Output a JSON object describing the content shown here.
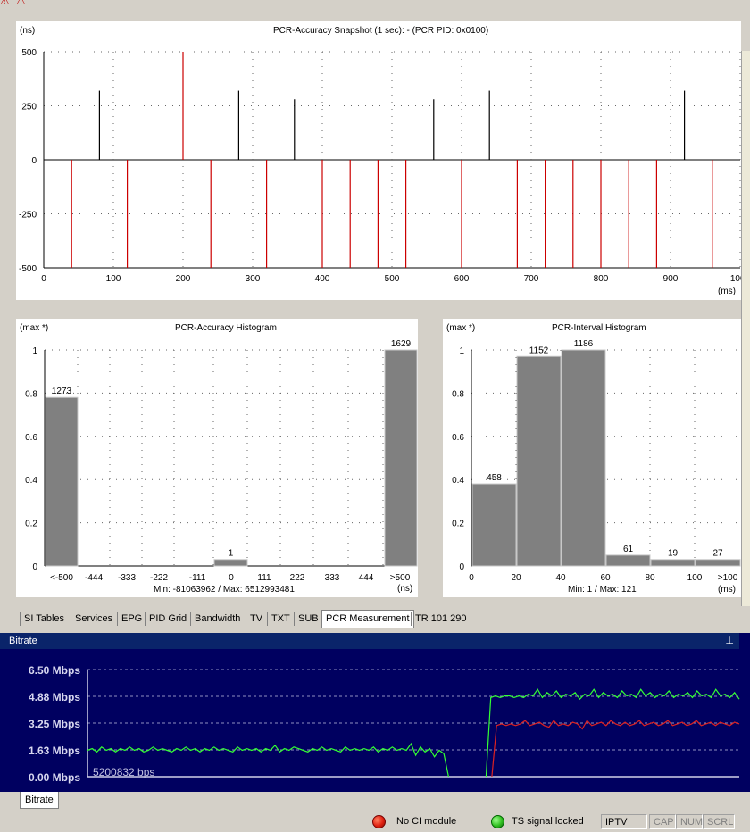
{
  "snapshot": {
    "title": "PCR-Accuracy Snapshot (1 sec):  - (PCR PID: 0x0100)",
    "ylabel": "(ns)",
    "xunit": "(ms)",
    "yticks": [
      "500",
      "250",
      "0",
      "-250",
      "-500"
    ],
    "xticks": [
      "0",
      "100",
      "200",
      "300",
      "400",
      "500",
      "600",
      "700",
      "800",
      "900",
      "1000"
    ]
  },
  "acc_hist": {
    "title": "PCR-Accuracy Histogram",
    "ylabel": "(max *)",
    "xunit": "(ns)",
    "minmax": "Min: -81063962 / Max: 6512993481",
    "yticks": [
      "1",
      "0.8",
      "0.6",
      "0.4",
      "0.2",
      "0"
    ],
    "xticks": [
      "<-500",
      "-444",
      "-333",
      "-222",
      "-111",
      "0",
      "111",
      "222",
      "333",
      "444",
      ">500"
    ],
    "bar_labels": [
      "1273",
      "1",
      "1629"
    ]
  },
  "int_hist": {
    "title": "PCR-Interval Histogram",
    "ylabel": "(max *)",
    "xunit": "(ms)",
    "minmax": "Min: 1 / Max: 121",
    "yticks": [
      "1",
      "0.8",
      "0.6",
      "0.4",
      "0.2",
      "0"
    ],
    "xticks": [
      "0",
      "20",
      "40",
      "60",
      "80",
      "100",
      ">100"
    ],
    "bar_labels": [
      "458",
      "1152",
      "1186",
      "61",
      "19",
      "27"
    ]
  },
  "chart_data": [
    {
      "type": "bar",
      "title": "PCR-Accuracy Snapshot (1 sec):  - (PCR PID: 0x0100)",
      "ylabel": "(ns)",
      "xlabel": "(ms)",
      "xlim": [
        0,
        1000
      ],
      "ylim": [
        -500,
        500
      ],
      "series": [
        {
          "name": "",
          "color": "#000000",
          "x": [
            80,
            280,
            360,
            560,
            640,
            920
          ],
          "values": [
            320,
            320,
            280,
            280,
            320,
            320
          ]
        },
        {
          "name": "",
          "color": "#cc0000",
          "x": [
            40,
            120,
            200,
            240,
            320,
            400,
            440,
            480,
            520,
            600,
            680,
            720,
            760,
            800,
            840,
            880,
            960
          ],
          "values": [
            -500,
            -500,
            500,
            -500,
            -500,
            -500,
            -500,
            -500,
            -500,
            -500,
            -500,
            -500,
            -500,
            -500,
            -500,
            -500,
            -500
          ]
        }
      ]
    },
    {
      "type": "bar",
      "title": "PCR-Accuracy Histogram",
      "ylabel": "(max *)",
      "xlabel": "(ns)",
      "categories": [
        "<-500",
        "-444",
        "-333",
        "-222",
        "-111",
        "0",
        "111",
        "222",
        "333",
        "444",
        ">500"
      ],
      "values": [
        0.78,
        0,
        0,
        0,
        0,
        0.03,
        0,
        0,
        0,
        0,
        1.0
      ],
      "ylim": [
        0,
        1
      ]
    },
    {
      "type": "bar",
      "title": "PCR-Interval Histogram",
      "ylabel": "(max *)",
      "xlabel": "(ms)",
      "categories": [
        "0-20",
        "20-40",
        "40-60",
        "60-80",
        "80-100",
        ">100"
      ],
      "values": [
        0.38,
        0.97,
        1.0,
        0.05,
        0.03,
        0.03
      ],
      "ylim": [
        0,
        1
      ]
    },
    {
      "type": "line",
      "title": "Bitrate",
      "yticks": [
        "6.50 Mbps",
        "4.88 Mbps",
        "3.25 Mbps",
        "1.63 Mbps",
        "0.00 Mbps"
      ],
      "ylim": [
        0,
        6.5
      ],
      "series": [
        {
          "name": "",
          "color": "#33ff33",
          "values": [
            1.6,
            1.7,
            1.5,
            1.8,
            1.6,
            1.7,
            1.5,
            1.7,
            1.6,
            1.8,
            1.6,
            1.7,
            1.5,
            1.6,
            1.8,
            1.6,
            1.7,
            1.6,
            1.5,
            1.7,
            1.6,
            1.8,
            1.6,
            1.7,
            1.5,
            1.7,
            1.6,
            1.8,
            1.6,
            1.7,
            1.6,
            1.5,
            1.8,
            1.6,
            1.7,
            1.6,
            1.7,
            1.5,
            1.7,
            1.6,
            1.9,
            1.5,
            1.7,
            1.6,
            1.8,
            1.7,
            1.6,
            1.5,
            1.7,
            1.6,
            1.8,
            1.6,
            1.7,
            1.6,
            1.5,
            1.8,
            1.6,
            1.7,
            1.6,
            1.7,
            1.6,
            1.8,
            1.5,
            1.7,
            1.6,
            1.8,
            1.6,
            1.7,
            1.6,
            2.0,
            1.3,
            1.8,
            1.5,
            1.7,
            1.2,
            1.6,
            1.4,
            0.0,
            null,
            null,
            null,
            null,
            null,
            null,
            null,
            0.0,
            4.8,
            4.9,
            4.8,
            4.9,
            4.9,
            4.8,
            4.9,
            4.8,
            5.0,
            4.9,
            5.3,
            4.8,
            5.1,
            4.9,
            5.2,
            4.8,
            5.0,
            4.9,
            5.1,
            4.7,
            5.0,
            4.9,
            5.3,
            4.8,
            5.1,
            4.9,
            5.0,
            4.8,
            5.2,
            4.9,
            5.0,
            4.8,
            5.3,
            4.9,
            5.1,
            4.8,
            5.0,
            4.9,
            5.2,
            4.8,
            5.0,
            4.9,
            5.1,
            4.8,
            5.2,
            4.9,
            5.0,
            4.8,
            5.3,
            4.9,
            5.0,
            4.8,
            5.1,
            4.7
          ]
        },
        {
          "name": "",
          "color": "#dd2222",
          "values": [
            null,
            null,
            null,
            null,
            null,
            null,
            null,
            null,
            null,
            null,
            null,
            null,
            null,
            null,
            null,
            null,
            null,
            null,
            null,
            null,
            null,
            null,
            null,
            null,
            null,
            null,
            null,
            null,
            null,
            null,
            null,
            null,
            null,
            null,
            null,
            null,
            null,
            null,
            null,
            null,
            null,
            null,
            null,
            null,
            null,
            null,
            null,
            null,
            null,
            null,
            null,
            null,
            null,
            null,
            null,
            null,
            null,
            null,
            null,
            null,
            null,
            null,
            null,
            null,
            null,
            null,
            null,
            null,
            null,
            null,
            null,
            null,
            null,
            null,
            null,
            null,
            null,
            null,
            null,
            null,
            null,
            null,
            null,
            null,
            null,
            0.0,
            3.1,
            3.2,
            3.1,
            3.2,
            3.1,
            3.2,
            3.4,
            3.1,
            3.2,
            3.3,
            3.1,
            3.0,
            3.4,
            3.1,
            3.2,
            3.1,
            3.3,
            3.2,
            2.9,
            3.4,
            3.1,
            3.2,
            3.3,
            3.1,
            3.4,
            3.2,
            3.1,
            3.3,
            3.1,
            3.2,
            3.4,
            3.1,
            3.2,
            3.3,
            3.1,
            3.2,
            3.4,
            3.1,
            3.2,
            3.3,
            3.1,
            3.2,
            3.4,
            3.1,
            3.2,
            3.3,
            3.1,
            3.3,
            3.2,
            3.1,
            3.3,
            3.2
          ]
        }
      ]
    }
  ],
  "tabs": [
    "SI Tables",
    "Services",
    "EPG",
    "PID Grid",
    "Bandwidth",
    "TV",
    "TXT",
    "SUB",
    "PCR Measurement",
    "TR 101 290"
  ],
  "active_tab": "PCR Measurement",
  "bitrate_panel": {
    "title": "Bitrate",
    "pin": "⊥",
    "yticks": [
      "6.50 Mbps",
      "4.88 Mbps",
      "3.25 Mbps",
      "1.63 Mbps",
      "0.00 Mbps"
    ],
    "readout": "5200832 bps",
    "bottom_tab": "Bitrate"
  },
  "status": {
    "ci": "No CI module",
    "signal": "TS signal locked",
    "mode": "IPTV",
    "cap": "CAP",
    "num": "NUM",
    "scrl": "SCRL",
    "colors": {
      "ci": "#e02010",
      "signal": "#30c020"
    }
  }
}
